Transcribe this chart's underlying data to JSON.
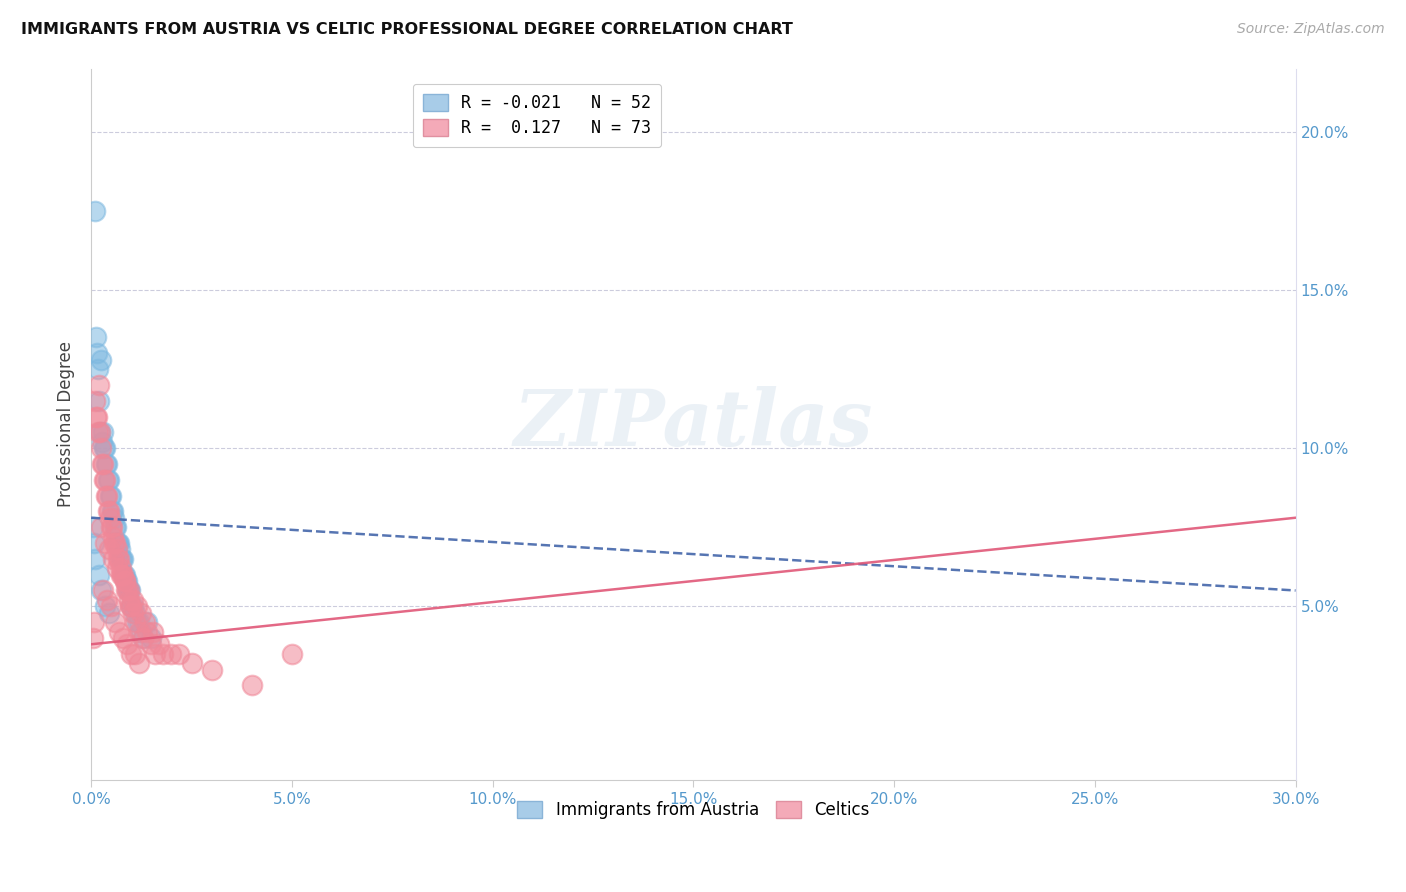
{
  "title": "IMMIGRANTS FROM AUSTRIA VS CELTIC PROFESSIONAL DEGREE CORRELATION CHART",
  "source": "Source: ZipAtlas.com",
  "xlim": [
    0.0,
    30.0
  ],
  "ylim": [
    -0.5,
    22.0
  ],
  "ylabel": "Professional Degree",
  "legend_r_labels": [
    "R = -0.021   N = 52",
    "R =  0.127   N = 73"
  ],
  "legend_labels": [
    "Immigrants from Austria",
    "Celtics"
  ],
  "austria_color": "#7db8e0",
  "celtics_color": "#f08898",
  "austria_line_color": "#4466aa",
  "celtics_line_color": "#e05878",
  "austria_legend_color": "#a8cce8",
  "celtics_legend_color": "#f4aab8",
  "watermark": "ZIPatlas",
  "austria_x": [
    0.05,
    0.08,
    0.1,
    0.12,
    0.15,
    0.18,
    0.2,
    0.22,
    0.25,
    0.28,
    0.3,
    0.32,
    0.35,
    0.38,
    0.4,
    0.42,
    0.45,
    0.48,
    0.5,
    0.52,
    0.55,
    0.58,
    0.6,
    0.62,
    0.65,
    0.68,
    0.7,
    0.72,
    0.75,
    0.78,
    0.8,
    0.82,
    0.85,
    0.88,
    0.9,
    0.92,
    0.95,
    0.98,
    1.0,
    1.05,
    1.1,
    1.15,
    1.2,
    1.25,
    1.3,
    1.4,
    1.5,
    0.1,
    0.2,
    0.25,
    0.35,
    0.45
  ],
  "austria_y": [
    7.5,
    7.0,
    17.5,
    13.5,
    13.0,
    12.5,
    11.5,
    10.5,
    12.8,
    10.2,
    10.5,
    10.0,
    10.0,
    9.5,
    9.5,
    9.0,
    9.0,
    8.5,
    8.5,
    8.0,
    8.0,
    7.8,
    7.5,
    7.5,
    7.0,
    7.0,
    7.0,
    6.8,
    6.5,
    6.5,
    6.5,
    6.0,
    6.0,
    5.8,
    5.8,
    5.5,
    5.5,
    5.5,
    5.0,
    5.0,
    4.8,
    4.5,
    4.5,
    4.2,
    4.0,
    4.5,
    4.0,
    6.5,
    6.0,
    5.5,
    5.0,
    4.8
  ],
  "celtics_x": [
    0.05,
    0.08,
    0.1,
    0.12,
    0.15,
    0.18,
    0.2,
    0.22,
    0.25,
    0.28,
    0.3,
    0.32,
    0.35,
    0.38,
    0.4,
    0.42,
    0.45,
    0.48,
    0.5,
    0.52,
    0.55,
    0.58,
    0.6,
    0.65,
    0.68,
    0.7,
    0.75,
    0.78,
    0.8,
    0.85,
    0.88,
    0.9,
    0.95,
    0.98,
    1.0,
    1.05,
    1.1,
    1.2,
    1.3,
    1.4,
    1.5,
    1.6,
    1.8,
    2.0,
    2.5,
    3.0,
    4.0,
    5.0,
    0.3,
    0.4,
    0.5,
    0.6,
    0.7,
    0.8,
    0.9,
    1.0,
    1.1,
    1.2,
    0.25,
    0.35,
    0.45,
    0.55,
    0.65,
    0.75,
    0.85,
    0.95,
    1.05,
    1.15,
    1.25,
    1.35,
    1.55,
    1.7,
    2.2
  ],
  "celtics_y": [
    4.0,
    4.5,
    11.5,
    11.0,
    11.0,
    10.5,
    12.0,
    10.5,
    10.0,
    9.5,
    9.5,
    9.0,
    9.0,
    8.5,
    8.5,
    8.0,
    8.0,
    7.8,
    7.5,
    7.5,
    7.2,
    7.0,
    7.0,
    6.8,
    6.5,
    6.5,
    6.2,
    6.0,
    6.0,
    5.8,
    5.5,
    5.5,
    5.2,
    5.0,
    5.0,
    4.8,
    4.5,
    4.2,
    4.0,
    4.2,
    3.8,
    3.5,
    3.5,
    3.5,
    3.2,
    3.0,
    2.5,
    3.5,
    5.5,
    5.2,
    5.0,
    4.5,
    4.2,
    4.0,
    3.8,
    3.5,
    3.5,
    3.2,
    7.5,
    7.0,
    6.8,
    6.5,
    6.2,
    6.0,
    5.8,
    5.5,
    5.2,
    5.0,
    4.8,
    4.5,
    4.2,
    3.8,
    3.5
  ],
  "austria_line_x": [
    0.0,
    30.0
  ],
  "austria_line_y": [
    7.8,
    5.5
  ],
  "celtics_line_x": [
    0.0,
    30.0
  ],
  "celtics_line_y": [
    3.8,
    7.8
  ]
}
